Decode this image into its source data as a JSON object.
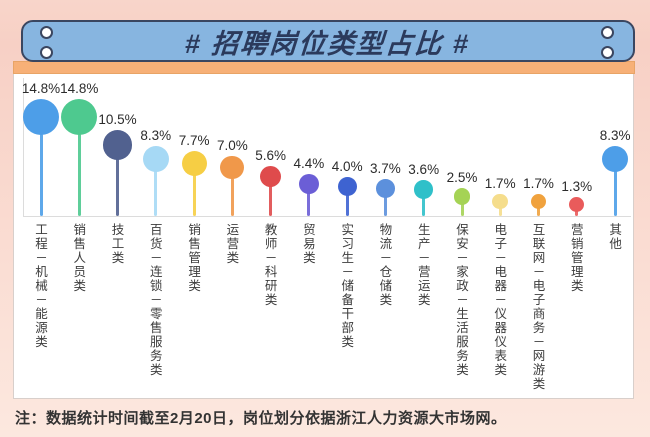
{
  "header": {
    "title": "# 招聘岗位类型占比 #"
  },
  "note": "注：数据统计时间截至2月20日，岗位划分依据浙江人力资源大市场网。",
  "colors": {
    "background_top": "#f8d5ca",
    "background_bottom": "#fce8df",
    "header_bar": "#87b5e0",
    "header_border": "#3a4660",
    "title_text": "#2b3a5c",
    "accent_strip": "#f7b077",
    "panel": "#ffffff",
    "axis": "#dcdcdc",
    "value_text": "#2b2b2b",
    "category_text": "#3d3d3d"
  },
  "chart_data": {
    "type": "bar",
    "subtype": "lollipop-bubble",
    "title": "招聘岗位类型占比",
    "unit": "%",
    "ylim": [
      0,
      16
    ],
    "grid": false,
    "legend": "none",
    "categories": [
      "工程－机械－能源类",
      "销售人员类",
      "技工类",
      "百货－连锁－零售服务类",
      "销售管理类",
      "运营类",
      "教师－科研类",
      "贸易类",
      "实习生－储备干部类",
      "物流－仓储类",
      "生产－营运类",
      "保安－家政－生活服务类",
      "电子－电器－仪器仪表类",
      "互联网－电子商务－网游类",
      "营销管理类",
      "其他"
    ],
    "values": [
      14.8,
      14.8,
      10.5,
      8.3,
      7.7,
      7.0,
      5.6,
      4.4,
      4.0,
      3.7,
      3.6,
      2.5,
      1.7,
      1.7,
      1.3,
      8.3
    ],
    "value_labels": [
      "14.8%",
      "14.8%",
      "10.5%",
      "8.3%",
      "7.7%",
      "7.0%",
      "5.6%",
      "4.4%",
      "4.0%",
      "3.7%",
      "3.6%",
      "2.5%",
      "1.7%",
      "1.7%",
      "1.3%",
      "8.3%"
    ],
    "bubble_colors": [
      "#4d9ee8",
      "#4ec98f",
      "#51618f",
      "#a6d9f5",
      "#f6ce44",
      "#f0984a",
      "#df4b4c",
      "#6b5ed6",
      "#3e63d1",
      "#5c90dc",
      "#2fc0c9",
      "#a5d355",
      "#f5dd8c",
      "#f0a23e",
      "#e95b5b",
      "#4d9ee8"
    ]
  }
}
